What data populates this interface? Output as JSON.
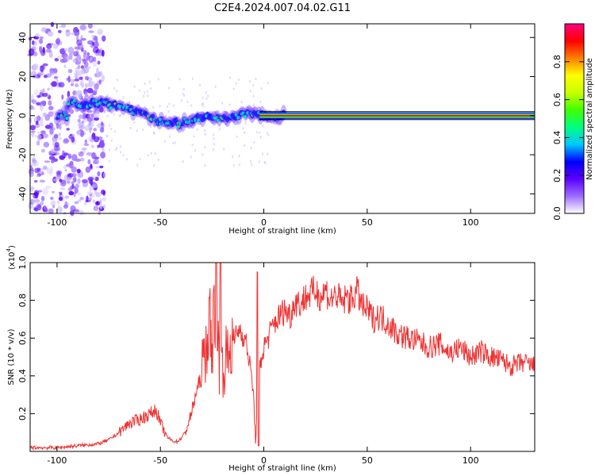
{
  "title": "C2E4.2024.007.04.02.G11",
  "chart_data": [
    {
      "type": "heatmap",
      "xlabel": "Height of straight line (km)",
      "ylabel": "Frequency (Hz)",
      "xlim": [
        -113,
        131
      ],
      "ylim": [
        -50,
        47
      ],
      "x_ticks": [
        "-100",
        "-50",
        "0",
        "50",
        "100"
      ],
      "x_tick_values": [
        -100,
        -50,
        0,
        50,
        100
      ],
      "y_ticks": [
        "40",
        "20",
        "0",
        "-20",
        "-40"
      ],
      "y_tick_values": [
        40,
        20,
        0,
        -20,
        -40
      ],
      "colorbar": {
        "label": "Normalized spectral amplitude",
        "range": [
          0,
          1
        ],
        "ticks": [
          "0.0",
          "0.2",
          "0.4",
          "0.6",
          "0.8"
        ],
        "tick_values": [
          0,
          0.2,
          0.4,
          0.6,
          0.8
        ],
        "colors": [
          "#ffffff",
          "#9b6cff",
          "#5a00ff",
          "#0000ff",
          "#00c8ff",
          "#00ff80",
          "#40ff00",
          "#c8ff00",
          "#ffff00",
          "#ff8000",
          "#ff0000",
          "#ff0080"
        ]
      },
      "ridge": {
        "x": [
          -95,
          -85,
          -78,
          -70,
          -60,
          -50,
          -45,
          -40,
          -35,
          -30,
          -25,
          -20,
          -15,
          -10,
          -5,
          0,
          5,
          10,
          131
        ],
        "freq": [
          6,
          6,
          7,
          5,
          1,
          -3,
          -3,
          -4,
          -3,
          -1,
          -1,
          -1,
          0,
          1,
          1,
          0,
          0,
          0,
          0
        ]
      },
      "noise_region_x": [
        -113,
        -77
      ]
    },
    {
      "type": "line",
      "xlabel": "Height of straight line (km)",
      "ylabel": "SNR (10 * v/v)",
      "y_scale_note": "(x10",
      "y_scale_exp": "4",
      "y_scale_close": ")",
      "xlim": [
        -113,
        131
      ],
      "ylim": [
        0,
        1
      ],
      "x_ticks": [
        "-100",
        "-50",
        "0",
        "50",
        "100"
      ],
      "x_tick_values": [
        -100,
        -50,
        0,
        50,
        100
      ],
      "y_ticks": [
        "1.0",
        "0.8",
        "0.6",
        "0.4",
        "0.2"
      ],
      "y_tick_values": [
        1.0,
        0.8,
        0.6,
        0.4,
        0.2
      ],
      "series": [
        {
          "color": "#ee3333",
          "x": [
            -113,
            -100,
            -90,
            -80,
            -75,
            -70,
            -65,
            -60,
            -55,
            -52,
            -50,
            -47,
            -45,
            -42,
            -40,
            -38,
            -35,
            -33,
            -30,
            -28,
            -26,
            -25,
            -24,
            -23,
            -22,
            -21,
            -20,
            -18,
            -16,
            -14,
            -12,
            -10,
            -8,
            -6,
            -5,
            -4,
            -3,
            -2,
            0,
            2,
            5,
            8,
            10,
            13,
            15,
            18,
            20,
            22,
            25,
            28,
            30,
            32,
            35,
            38,
            40,
            42,
            45,
            48,
            50,
            53,
            55,
            58,
            60,
            65,
            70,
            75,
            80,
            85,
            90,
            95,
            100,
            105,
            110,
            115,
            120,
            125,
            131
          ],
          "y": [
            0.02,
            0.02,
            0.03,
            0.04,
            0.06,
            0.1,
            0.15,
            0.17,
            0.2,
            0.22,
            0.15,
            0.08,
            0.06,
            0.05,
            0.07,
            0.1,
            0.2,
            0.3,
            0.4,
            0.55,
            0.7,
            0.5,
            0.85,
            0.4,
            0.6,
            0.35,
            0.45,
            0.5,
            0.55,
            0.6,
            0.65,
            0.62,
            0.55,
            0.4,
            0.3,
            0.05,
            0.3,
            0.45,
            0.55,
            0.6,
            0.68,
            0.72,
            0.75,
            0.72,
            0.8,
            0.78,
            0.82,
            0.83,
            0.85,
            0.82,
            0.86,
            0.8,
            0.83,
            0.78,
            0.82,
            0.8,
            0.85,
            0.76,
            0.75,
            0.7,
            0.72,
            0.7,
            0.68,
            0.62,
            0.6,
            0.58,
            0.55,
            0.57,
            0.52,
            0.55,
            0.5,
            0.53,
            0.5,
            0.48,
            0.45,
            0.47,
            0.45
          ]
        }
      ]
    }
  ]
}
